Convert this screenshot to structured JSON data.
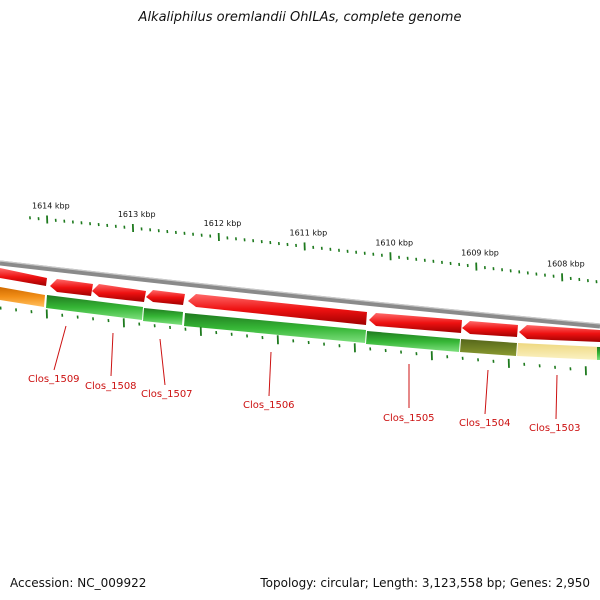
{
  "title": "Alkaliphilus oremlandii OhILAs, complete genome",
  "footer": {
    "accession": "Accession: NC_009922",
    "summary": "Topology: circular; Length: 3,123,558 bp; Genes: 2,950"
  },
  "colors": {
    "backbone": "#8a8a8a",
    "forward_cds": "#ee1111",
    "reverse_cds": "#2e9a2e",
    "orange_feature": "#f39018",
    "olive_feature": "#6e7f1c",
    "pale_feature": "#f1e49a",
    "tick": "#1e7a1e",
    "label_line": "#cc1111"
  },
  "ruler": [
    {
      "label": "1614 kbp",
      "kbp": 1614
    },
    {
      "label": "1613 kbp",
      "kbp": 1613
    },
    {
      "label": "1612 kbp",
      "kbp": 1612
    },
    {
      "label": "1611 kbp",
      "kbp": 1611
    },
    {
      "label": "1610 kbp",
      "kbp": 1610
    },
    {
      "label": "1609 kbp",
      "kbp": 1609
    },
    {
      "label": "1608 kbp",
      "kbp": 1608
    }
  ],
  "genes": [
    {
      "label": "Clos_1509"
    },
    {
      "label": "Clos_1508"
    },
    {
      "label": "Clos_1507"
    },
    {
      "label": "Clos_1506"
    },
    {
      "label": "Clos_1505"
    },
    {
      "label": "Clos_1504"
    },
    {
      "label": "Clos_1503"
    }
  ]
}
